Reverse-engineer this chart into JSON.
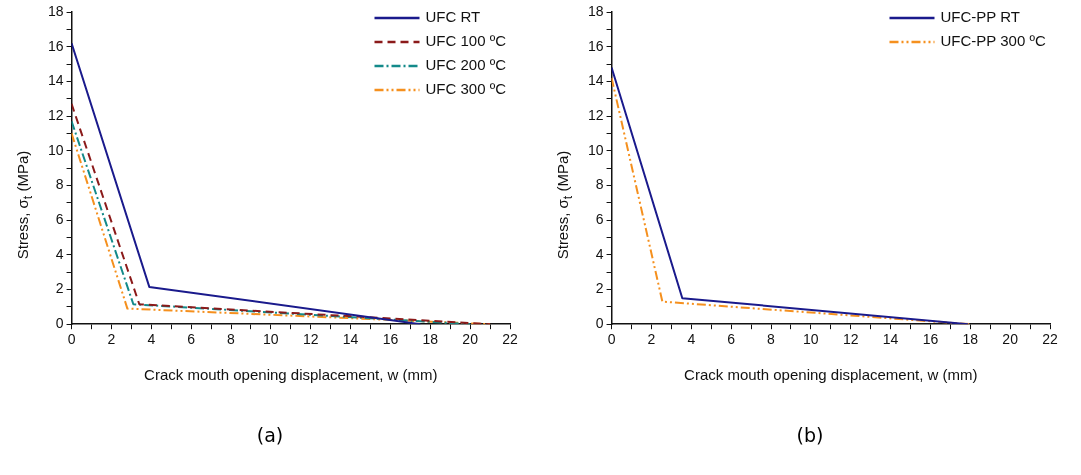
{
  "chart_data": [
    {
      "type": "line",
      "xlabel": "Crack mouth opening displacement, w (mm)",
      "ylabel": "Stress, σ$_{t}$ (MPa)",
      "annotations": [
        "(a)"
      ],
      "xlim": [
        0,
        22
      ],
      "ylim": [
        0,
        18
      ],
      "xticks": [
        0,
        {
          "value": 1,
          "label": null
        },
        2,
        {
          "value": 3,
          "label": null
        },
        4,
        {
          "value": 5,
          "label": null
        },
        6,
        {
          "value": 7,
          "label": null
        },
        8,
        {
          "value": 9,
          "label": null
        },
        10,
        {
          "value": 11,
          "label": null
        },
        12,
        {
          "value": 13,
          "label": null
        },
        14,
        {
          "value": 15,
          "label": null
        },
        16,
        {
          "value": 17,
          "label": null
        },
        18,
        {
          "value": 19,
          "label": null
        },
        20,
        {
          "value": 21,
          "label": null
        },
        22
      ],
      "yticks": [
        0,
        {
          "value": 1,
          "label": null
        },
        2,
        {
          "value": 3,
          "label": null
        },
        4,
        {
          "value": 5,
          "label": null
        },
        6,
        {
          "value": 7,
          "label": null
        },
        8,
        {
          "value": 9,
          "label": null
        },
        10,
        {
          "value": 11,
          "label": null
        },
        12,
        {
          "value": 13,
          "label": null
        },
        14,
        {
          "value": 15,
          "label": null
        },
        16,
        {
          "value": 17,
          "label": null
        },
        18
      ],
      "grid": false,
      "legend": "top right",
      "marker": "none",
      "series": [
        {
          "name": "UFC RT",
          "color": "#1a1a8c",
          "line_style": "solid",
          "x": [
            0,
            3.9,
            17.5
          ],
          "values": [
            16.2,
            2.15,
            0
          ]
        },
        {
          "name": "UFC 100 ºC",
          "color": "#8b1a1a",
          "line_style": "dashed",
          "x": [
            0,
            3.4,
            21
          ],
          "values": [
            12.7,
            1.15,
            0
          ]
        },
        {
          "name": "UFC 200 ºC",
          "color": "#138a8a",
          "line_style": "dashdot",
          "x": [
            0,
            3.1,
            20
          ],
          "values": [
            11.7,
            1.15,
            0
          ]
        },
        {
          "name": "UFC 300 ºC",
          "color": "#f5901e",
          "line_style": "dashdotdot",
          "x": [
            0,
            2.8,
            21
          ],
          "values": [
            11.0,
            0.9,
            0
          ]
        }
      ]
    },
    {
      "type": "line",
      "xlabel": "Crack mouth opening displacement, w (mm)",
      "ylabel": "Stress, σ$_{t}$ (MPa)",
      "annotations": [
        "(b)"
      ],
      "xlim": [
        0,
        22
      ],
      "ylim": [
        0,
        18
      ],
      "xticks": [
        0,
        {
          "value": 1,
          "label": null
        },
        2,
        {
          "value": 3,
          "label": null
        },
        4,
        {
          "value": 5,
          "label": null
        },
        6,
        {
          "value": 7,
          "label": null
        },
        8,
        {
          "value": 9,
          "label": null
        },
        10,
        {
          "value": 11,
          "label": null
        },
        12,
        {
          "value": 13,
          "label": null
        },
        14,
        {
          "value": 15,
          "label": null
        },
        16,
        {
          "value": 17,
          "label": null
        },
        18,
        {
          "value": 19,
          "label": null
        },
        20,
        {
          "value": 21,
          "label": null
        },
        22
      ],
      "yticks": [
        0,
        {
          "value": 1,
          "label": null
        },
        2,
        {
          "value": 3,
          "label": null
        },
        4,
        {
          "value": 5,
          "label": null
        },
        6,
        {
          "value": 7,
          "label": null
        },
        8,
        {
          "value": 9,
          "label": null
        },
        10,
        {
          "value": 11,
          "label": null
        },
        12,
        {
          "value": 13,
          "label": null
        },
        14,
        {
          "value": 15,
          "label": null
        },
        16,
        {
          "value": 17,
          "label": null
        },
        18
      ],
      "grid": false,
      "legend": "top right",
      "marker": "none",
      "series": [
        {
          "name": "UFC-PP RT",
          "color": "#1a1a8c",
          "line_style": "solid",
          "x": [
            0,
            3.55,
            17.9
          ],
          "values": [
            14.8,
            1.5,
            0
          ]
        },
        {
          "name": "UFC-PP 300 ºC",
          "color": "#f5901e",
          "line_style": "dashdotdot",
          "x": [
            0,
            2.55,
            18
          ],
          "values": [
            14.2,
            1.3,
            0
          ]
        }
      ]
    }
  ]
}
